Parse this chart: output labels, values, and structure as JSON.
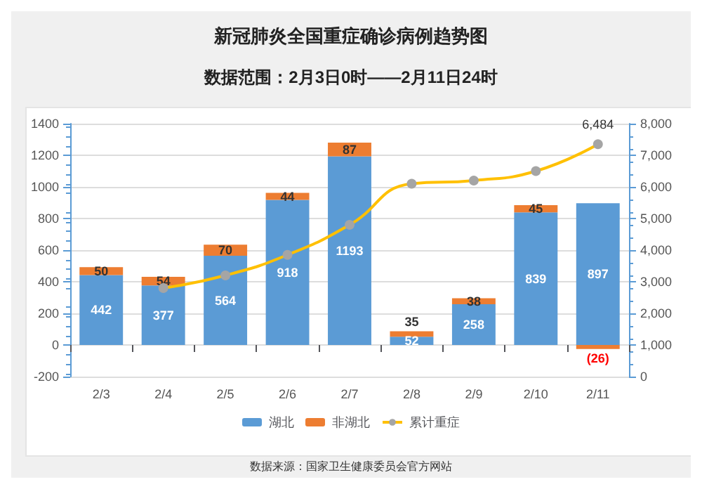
{
  "chart_data": {
    "type": "bar",
    "title": "新冠肺炎全国重症确诊病例趋势图",
    "subtitle": "数据范围：2月3日0时——2月11日24时",
    "categories": [
      "2/3",
      "2/4",
      "2/5",
      "2/6",
      "2/7",
      "2/8",
      "2/9",
      "2/10",
      "2/11"
    ],
    "stacked": true,
    "series": [
      {
        "name": "湖北",
        "color": "#5b9bd5",
        "values": [
          442,
          377,
          564,
          918,
          1193,
          52,
          258,
          839,
          897
        ],
        "value_labels": [
          "442",
          "377",
          "564",
          "918",
          "1193",
          "52",
          "258",
          "839",
          "897"
        ]
      },
      {
        "name": "非湖北",
        "color": "#ed7d31",
        "values": [
          50,
          54,
          70,
          44,
          87,
          35,
          38,
          45,
          -26
        ],
        "value_labels": [
          "50",
          "54",
          "70",
          "44",
          "87",
          "35",
          "38",
          "45",
          "(26)"
        ]
      },
      {
        "name": "累计重症",
        "type": "line",
        "axis": "y2",
        "color": "#ffc000",
        "marker": "circle",
        "values": [
          null,
          2800,
          3200,
          3850,
          4800,
          6100,
          6200,
          6500,
          7350
        ]
      }
    ],
    "ylim": [
      -200,
      1400
    ],
    "yticks": [
      -200,
      0,
      200,
      400,
      600,
      800,
      1000,
      1200,
      1400
    ],
    "y2lim": [
      0,
      8000
    ],
    "y2ticks": [
      0,
      {
        "value": 1000,
        "label": "1,000"
      },
      {
        "value": 2000,
        "label": "2,000"
      },
      {
        "value": 3000,
        "label": "3,000"
      },
      {
        "value": 4000,
        "label": "4,000"
      },
      {
        "value": 5000,
        "label": "5,000"
      },
      {
        "value": 6000,
        "label": "6,000"
      },
      {
        "value": 7000,
        "label": "7,000"
      },
      {
        "value": 8000,
        "label": "8,000"
      }
    ],
    "grid": "y",
    "legend": "bottom",
    "annotations": [
      "6,484",
      "数据来源：国家卫生健康委员会官方网站"
    ]
  }
}
